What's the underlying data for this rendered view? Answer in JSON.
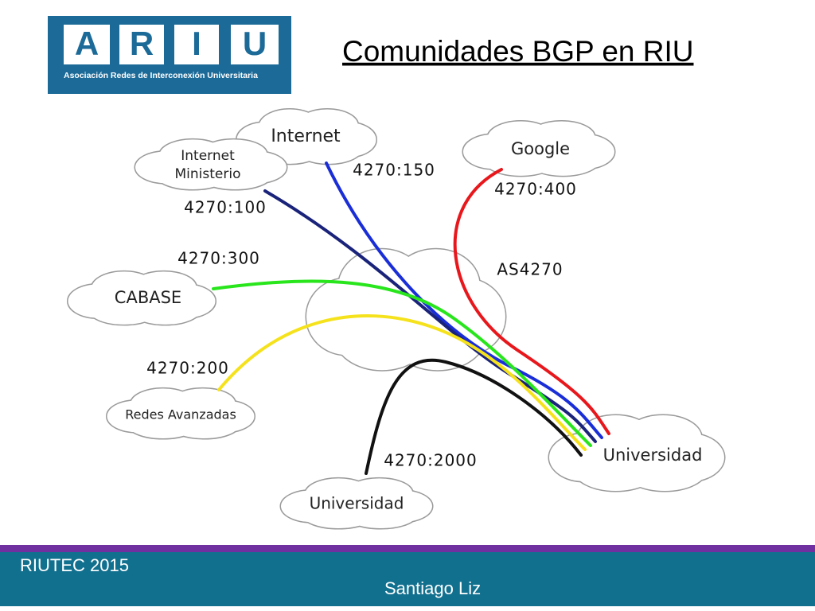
{
  "logo": {
    "letters": [
      "A",
      "R",
      "I",
      "U"
    ],
    "subtitle": "Asociación Redes de Interconexión Universitaria"
  },
  "title": "Comunidades BGP en RIU",
  "nodes": [
    {
      "label": "Internet"
    },
    {
      "lines": [
        "Internet",
        "Ministerio"
      ]
    },
    {
      "label": "Google"
    },
    {
      "label": "AS4270"
    },
    {
      "label": "CABASE"
    },
    {
      "label": "Redes Avanzadas"
    },
    {
      "label": "Universidad"
    },
    {
      "label": "Universidad"
    }
  ],
  "links": [
    {
      "label": "4270:150"
    },
    {
      "label": "4270:100"
    },
    {
      "label": "4270:400"
    },
    {
      "label": "4270:300"
    },
    {
      "label": "4270:200"
    },
    {
      "label": "4270:2000"
    }
  ],
  "footer": {
    "event": "RIUTEC 2015",
    "author": "Santiago Liz"
  }
}
